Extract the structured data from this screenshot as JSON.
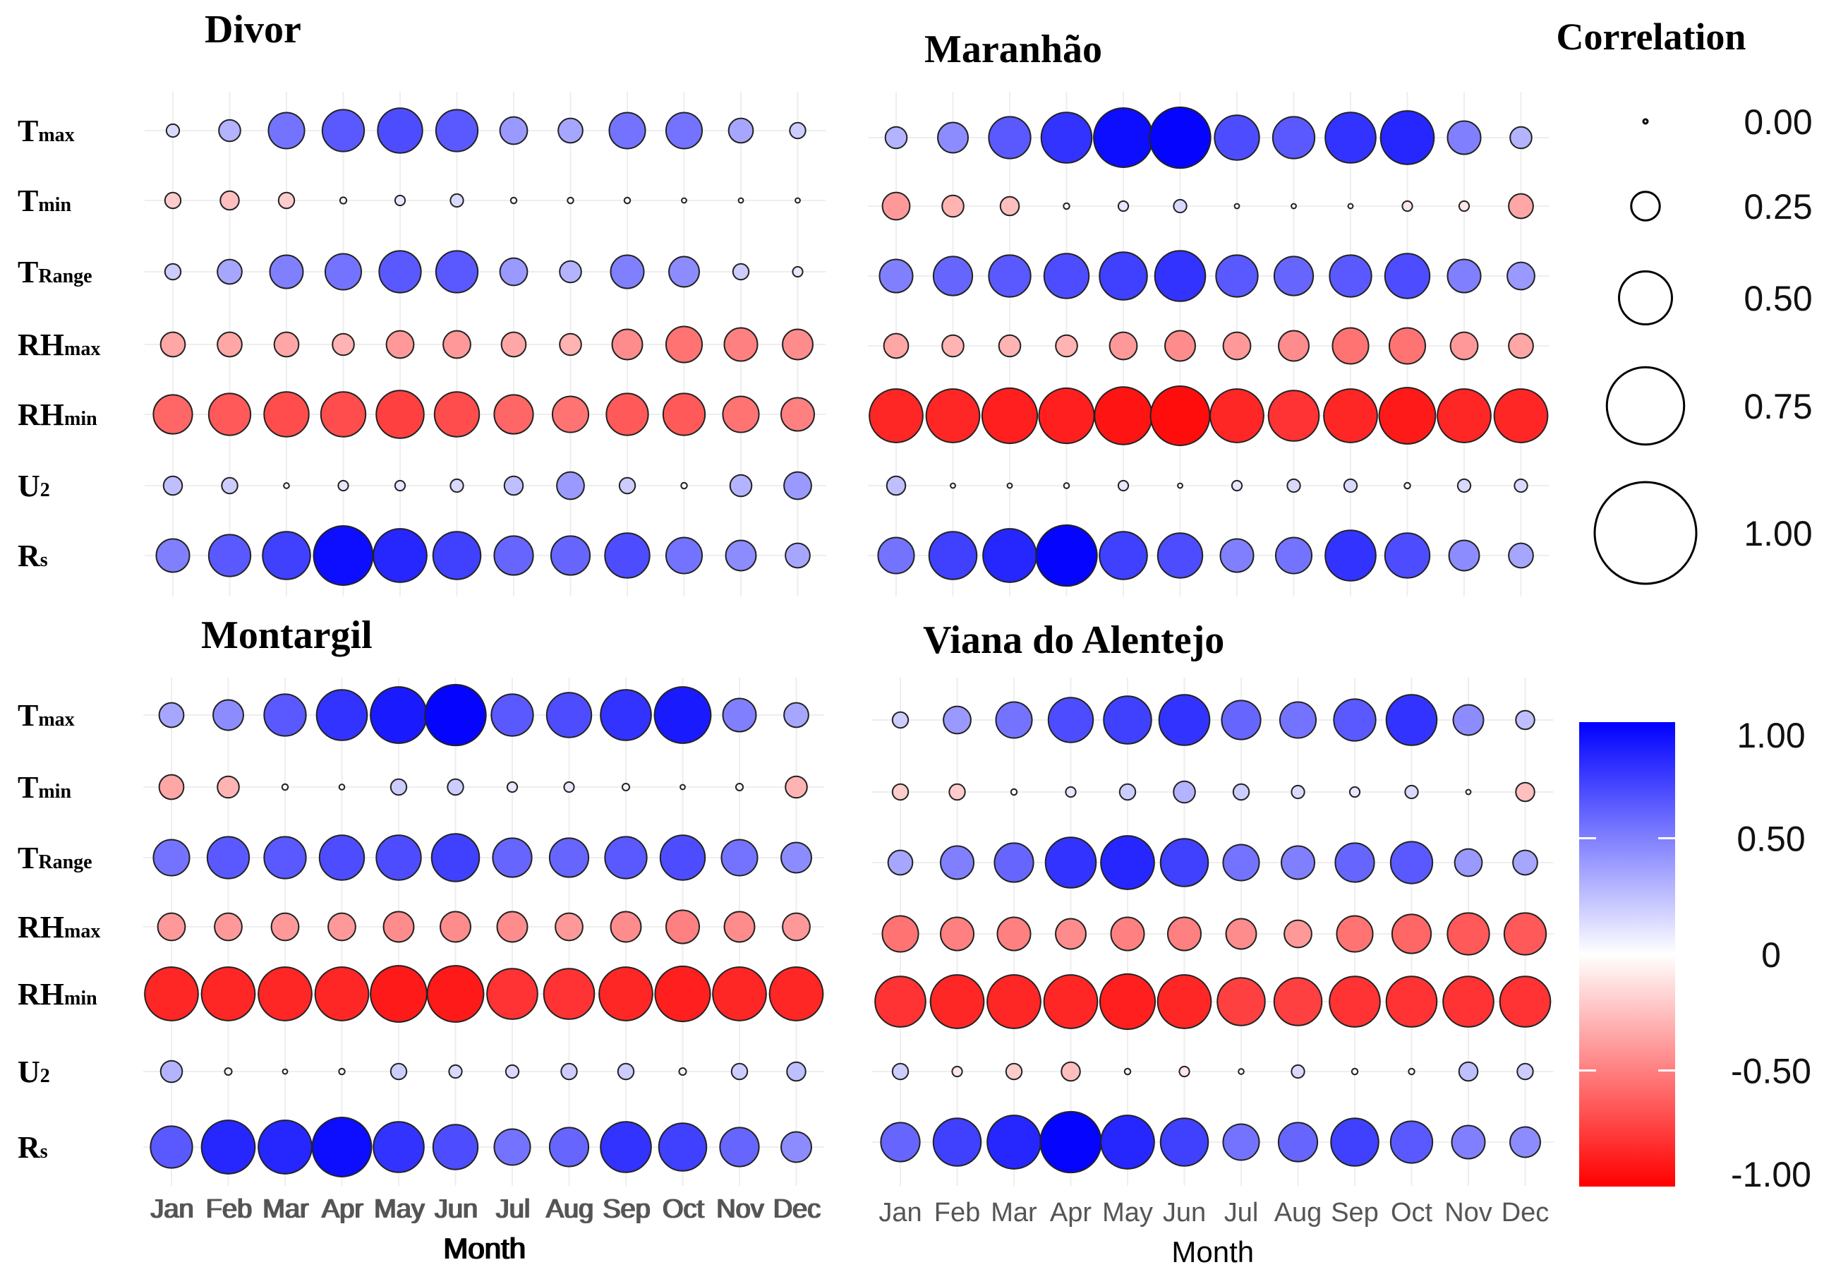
{
  "chart_data": {
    "type": "heatmap",
    "xlabel": "Month",
    "months": [
      "Jan",
      "Feb",
      "Mar",
      "Apr",
      "May",
      "Jun",
      "Jul",
      "Aug",
      "Sep",
      "Oct",
      "Nov",
      "Dec"
    ],
    "variables": [
      {
        "main": "T",
        "sub": "max"
      },
      {
        "main": "T",
        "sub": "min"
      },
      {
        "main": "T",
        "sub": "Range"
      },
      {
        "main": "RH",
        "sub": "max"
      },
      {
        "main": "RH",
        "sub": "min"
      },
      {
        "main": "U",
        "sub": "2"
      },
      {
        "main": "R",
        "sub": "s"
      }
    ],
    "panels": [
      {
        "title": "Divor",
        "values": [
          [
            0.15,
            0.3,
            0.55,
            0.65,
            0.7,
            0.65,
            0.4,
            0.35,
            0.55,
            0.55,
            0.35,
            0.2
          ],
          [
            -0.2,
            -0.25,
            -0.2,
            0.04,
            0.1,
            0.15,
            0.03,
            0.03,
            0.03,
            0.01,
            0.01,
            0.01
          ],
          [
            0.2,
            0.35,
            0.5,
            0.55,
            0.65,
            0.65,
            0.4,
            0.3,
            0.5,
            0.45,
            0.2,
            0.1
          ],
          [
            -0.35,
            -0.35,
            -0.35,
            -0.3,
            -0.4,
            -0.4,
            -0.35,
            -0.3,
            -0.45,
            -0.55,
            -0.5,
            -0.45
          ],
          [
            -0.6,
            -0.65,
            -0.7,
            -0.7,
            -0.75,
            -0.7,
            -0.6,
            -0.55,
            -0.65,
            -0.65,
            -0.55,
            -0.5
          ],
          [
            0.25,
            0.2,
            0.02,
            0.1,
            0.1,
            0.15,
            0.25,
            0.4,
            0.2,
            0.03,
            0.3,
            0.4
          ],
          [
            0.5,
            0.65,
            0.75,
            0.95,
            0.85,
            0.75,
            0.6,
            0.6,
            0.7,
            0.55,
            0.45,
            0.35
          ]
        ]
      },
      {
        "title": "Maranhão",
        "values": [
          [
            0.3,
            0.45,
            0.65,
            0.8,
            0.95,
            0.98,
            0.7,
            0.65,
            0.8,
            0.85,
            0.5,
            0.3
          ],
          [
            -0.4,
            -0.3,
            -0.25,
            -0.03,
            0.1,
            0.15,
            0.01,
            0.01,
            0.01,
            -0.1,
            -0.1,
            -0.35
          ],
          [
            0.5,
            0.6,
            0.65,
            0.7,
            0.75,
            0.8,
            0.65,
            0.6,
            0.65,
            0.7,
            0.5,
            0.4
          ],
          [
            -0.35,
            -0.3,
            -0.3,
            -0.3,
            -0.4,
            -0.45,
            -0.4,
            -0.45,
            -0.55,
            -0.55,
            -0.4,
            -0.35
          ],
          [
            -0.85,
            -0.85,
            -0.88,
            -0.88,
            -0.92,
            -0.95,
            -0.85,
            -0.8,
            -0.85,
            -0.9,
            -0.85,
            -0.85
          ],
          [
            0.25,
            0.01,
            0.01,
            0.02,
            0.1,
            0.01,
            0.1,
            0.15,
            0.15,
            0.03,
            0.15,
            0.15
          ],
          [
            0.55,
            0.75,
            0.85,
            0.98,
            0.75,
            0.7,
            0.5,
            0.55,
            0.8,
            0.7,
            0.45,
            0.35
          ]
        ]
      },
      {
        "title": "Montargil",
        "values": [
          [
            0.35,
            0.45,
            0.65,
            0.8,
            0.9,
            0.98,
            0.65,
            0.7,
            0.8,
            0.9,
            0.5,
            0.35
          ],
          [
            -0.35,
            -0.3,
            0.03,
            0.02,
            0.2,
            0.2,
            0.1,
            0.1,
            0.05,
            0.01,
            0.05,
            -0.3
          ],
          [
            0.55,
            0.65,
            0.65,
            0.7,
            0.7,
            0.75,
            0.6,
            0.6,
            0.65,
            0.7,
            0.55,
            0.45
          ],
          [
            -0.4,
            -0.4,
            -0.4,
            -0.4,
            -0.45,
            -0.45,
            -0.45,
            -0.4,
            -0.45,
            -0.5,
            -0.45,
            -0.4
          ],
          [
            -0.85,
            -0.85,
            -0.85,
            -0.85,
            -0.9,
            -0.9,
            -0.8,
            -0.8,
            -0.85,
            -0.88,
            -0.85,
            -0.85
          ],
          [
            0.3,
            0.05,
            0.01,
            0.03,
            0.2,
            0.15,
            0.15,
            0.2,
            0.2,
            0.05,
            0.2,
            0.25
          ],
          [
            0.65,
            0.85,
            0.85,
            0.95,
            0.8,
            0.7,
            0.55,
            0.6,
            0.8,
            0.75,
            0.6,
            0.45
          ]
        ]
      },
      {
        "title": "Viana do Alentejo",
        "values": [
          [
            0.2,
            0.4,
            0.55,
            0.7,
            0.75,
            0.8,
            0.6,
            0.55,
            0.65,
            0.8,
            0.45,
            0.25
          ],
          [
            -0.2,
            -0.2,
            -0.03,
            0.1,
            0.2,
            0.3,
            0.2,
            0.15,
            0.1,
            0.15,
            0.01,
            -0.25
          ],
          [
            0.35,
            0.5,
            0.6,
            0.8,
            0.85,
            0.75,
            0.55,
            0.5,
            0.6,
            0.65,
            0.4,
            0.35
          ],
          [
            -0.55,
            -0.5,
            -0.5,
            -0.45,
            -0.5,
            -0.5,
            -0.45,
            -0.4,
            -0.55,
            -0.6,
            -0.65,
            -0.65
          ],
          [
            -0.8,
            -0.85,
            -0.85,
            -0.85,
            -0.88,
            -0.85,
            -0.75,
            -0.75,
            -0.8,
            -0.8,
            -0.8,
            -0.8
          ],
          [
            0.2,
            -0.1,
            -0.2,
            -0.25,
            0.03,
            -0.1,
            0.02,
            0.15,
            0.03,
            0.03,
            0.25,
            0.2
          ],
          [
            0.6,
            0.75,
            0.85,
            0.98,
            0.85,
            0.75,
            0.55,
            0.6,
            0.75,
            0.65,
            0.5,
            0.45
          ]
        ]
      }
    ],
    "size_legend": {
      "title": "Correlation",
      "labels": [
        "0.00",
        "0.25",
        "0.50",
        "0.75",
        "1.00"
      ],
      "values": [
        0.0,
        0.25,
        0.5,
        0.75,
        1.0
      ]
    },
    "color_legend": {
      "labels": [
        "1.00",
        "0.50",
        "0",
        "-0.50",
        "-1.00"
      ],
      "range": [
        -1,
        1
      ],
      "colors": {
        "negative": "#ff0000",
        "zero": "#ffffff",
        "positive": "#0000ff"
      }
    }
  }
}
